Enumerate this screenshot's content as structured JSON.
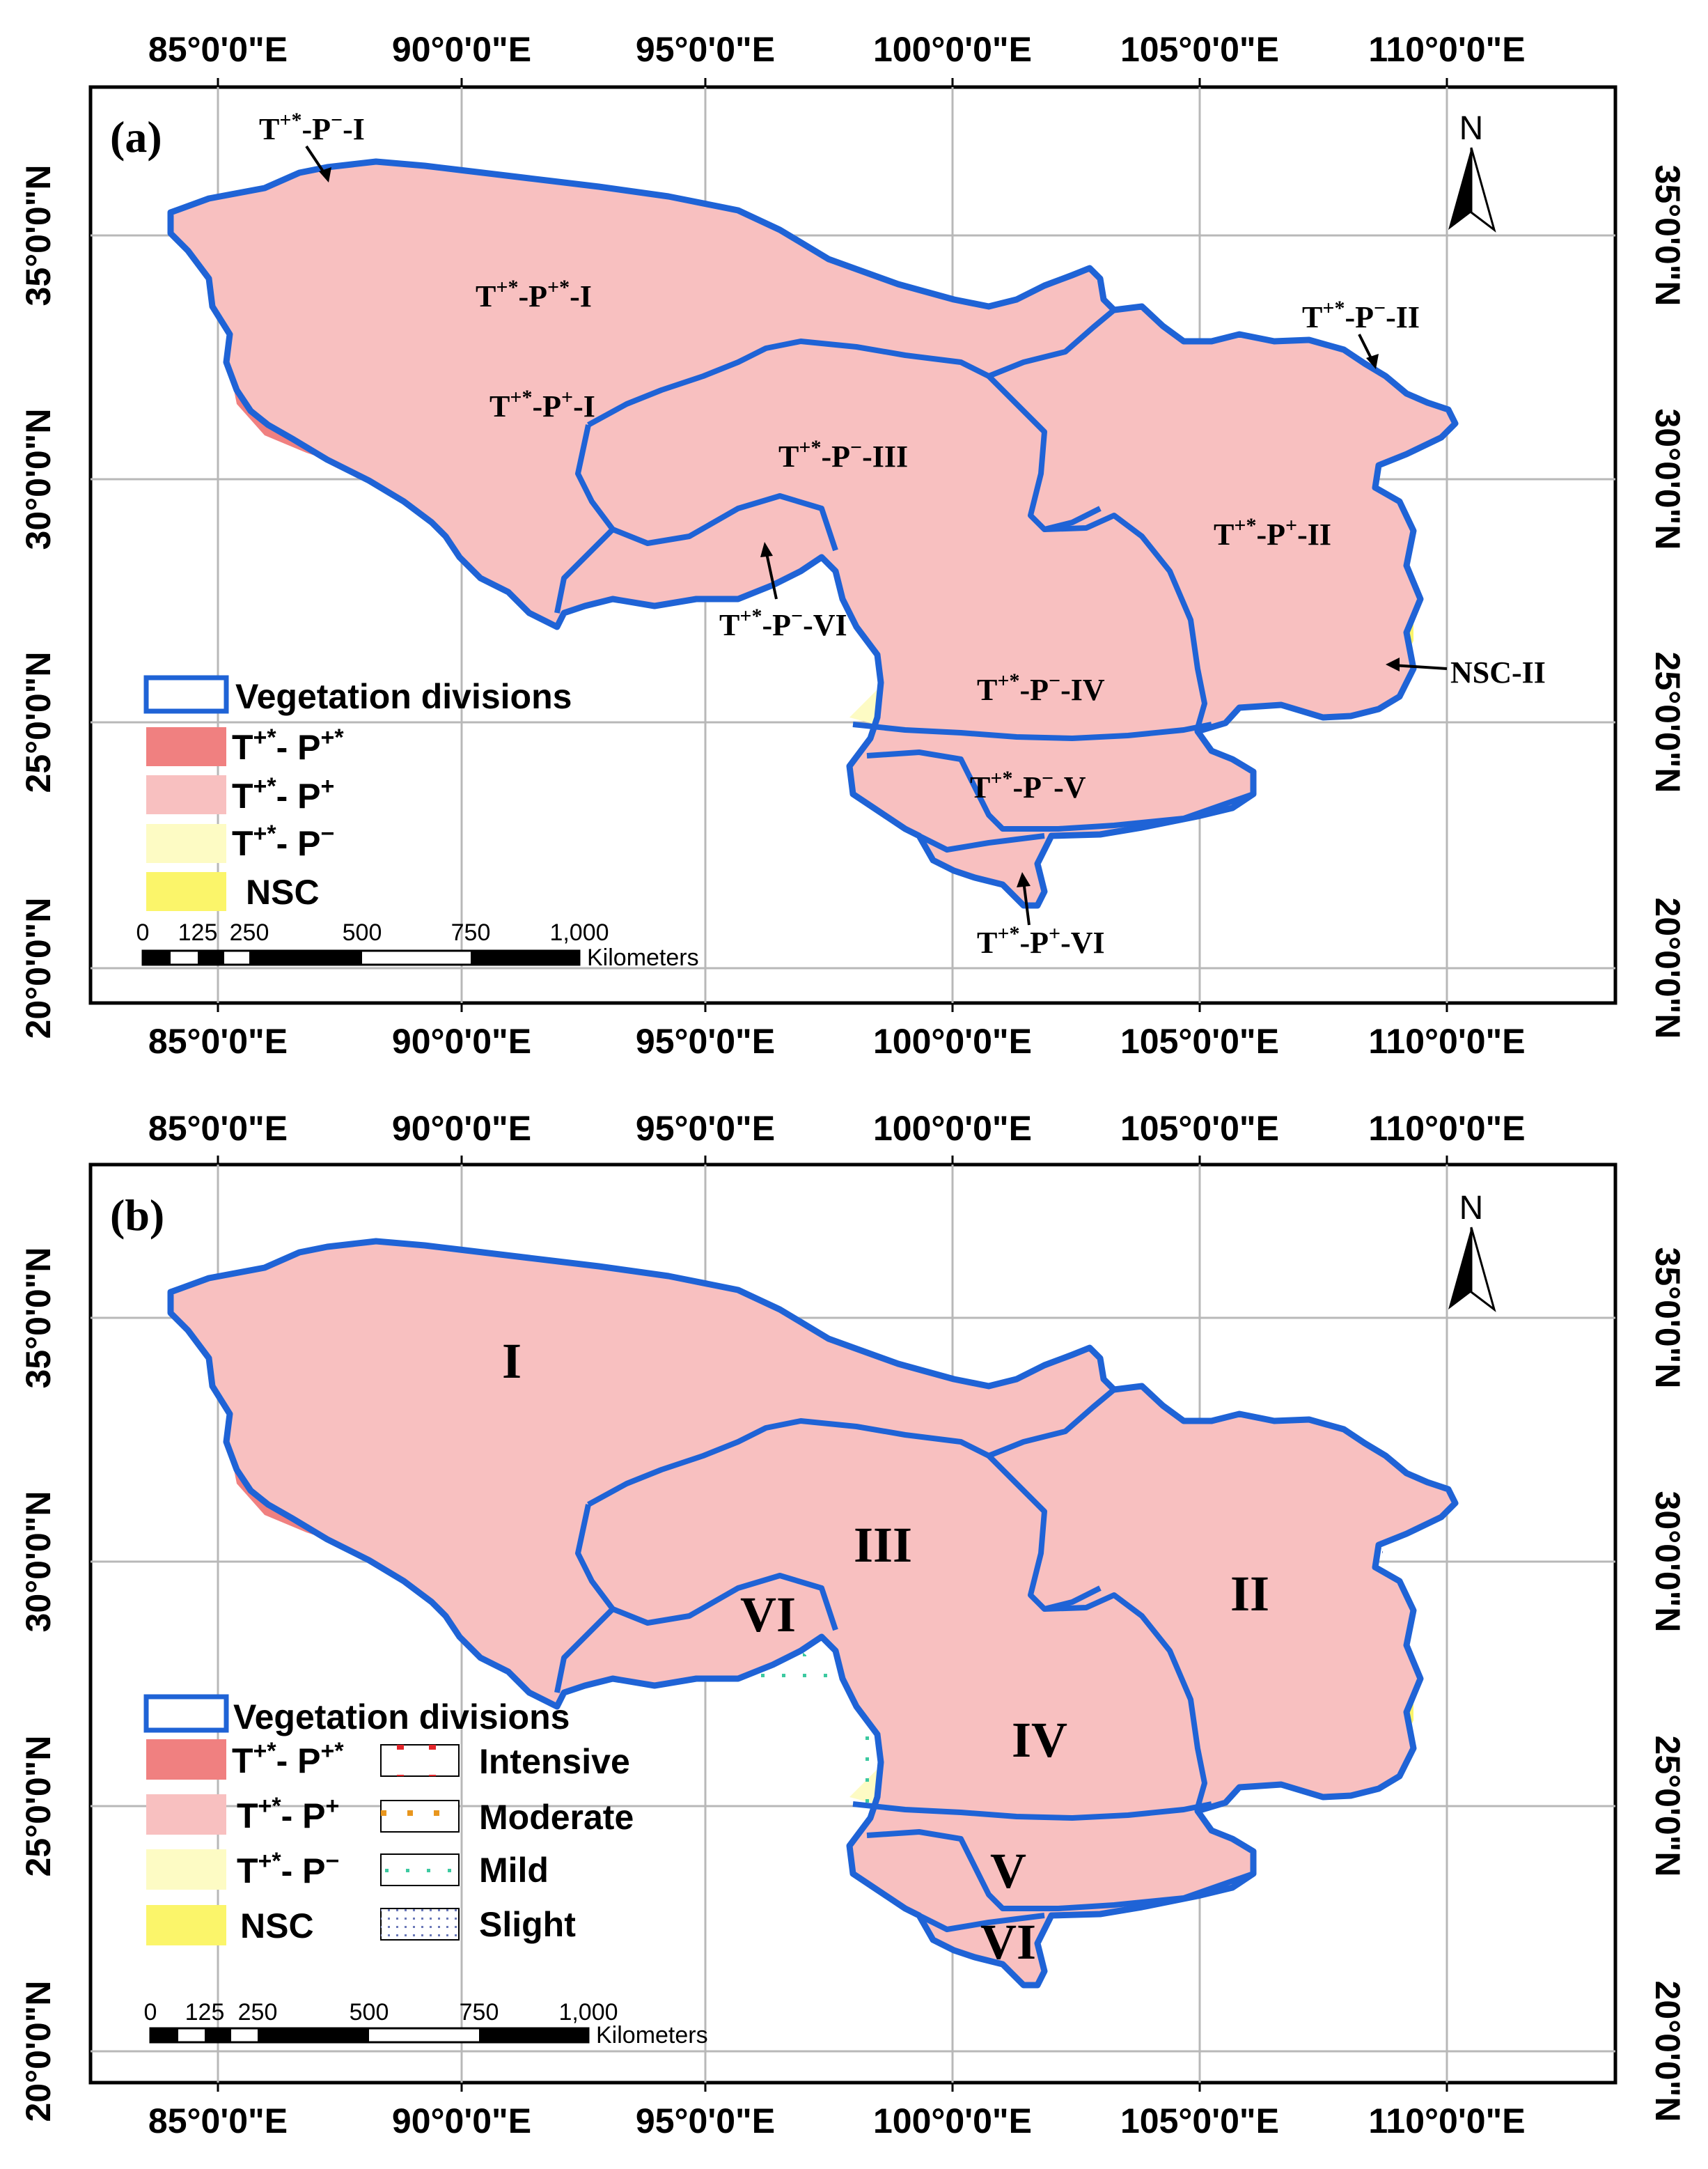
{
  "colors": {
    "t_pp_strong": "#f08080",
    "t_pp": "#f8c0c0",
    "t_pm": "#fdfbc4",
    "nsc": "#fbf56a",
    "boundary": "#1f63d6"
  },
  "axes": {
    "top_lon": [
      "85°0'0\"E",
      "90°0'0\"E",
      "95°0'0\"E",
      "100°0'0\"E",
      "105°0'0\"E",
      "110°0'0\"E"
    ],
    "mid_lon": [
      "85°0'0\"E",
      "90°0'0\"E",
      "95°0'0\"E",
      "100°0'0\"E",
      "105°0'0\"E",
      "110°0'0\"E"
    ],
    "mid_lon_b": [
      "85°0'0\"E",
      "90°0'0\"E",
      "95°0'0\"E",
      "100°0'0\"E",
      "105°0'0\"E",
      "110°0'0\"E"
    ],
    "bottom_lon": [
      "85°0'0\"E",
      "90°0'0\"E",
      "95°0'0\"E",
      "100°0'0\"E",
      "105°0'0\"E",
      "110°0'0\"E"
    ],
    "lat_a": [
      "35°0'0\"N",
      "30°0'0\"N",
      "25°0'0\"N",
      "20°0'0\"N"
    ],
    "lat_a_right": [
      "35°0'0\"N",
      "30°0'0\"N",
      "25°0'0\"N",
      "20°0'0\"N"
    ],
    "lat_b": [
      "35°0'0\"N",
      "30°0'0\"N",
      "25°0'0\"N",
      "20°0'0\"N"
    ],
    "lat_b_right": [
      "35°0'0\"N",
      "30°0'0\"N",
      "25°0'0\"N",
      "20°0'0\"N"
    ]
  },
  "panel_a": {
    "label": "(a)",
    "north": "N",
    "regions": [
      {
        "base": "T",
        "sup1": "+*",
        "mid": "-P",
        "sup2": "−",
        "tail": "-I"
      },
      {
        "base": "T",
        "sup1": "+*",
        "mid": "-P",
        "sup2": "+*",
        "tail": "-I"
      },
      {
        "base": "T",
        "sup1": "+*",
        "mid": "-P",
        "sup2": "+",
        "tail": "-I"
      },
      {
        "base": "T",
        "sup1": "+*",
        "mid": "-P",
        "sup2": "−",
        "tail": "-III"
      },
      {
        "base": "T",
        "sup1": "+*",
        "mid": "-P",
        "sup2": "−",
        "tail": "-II"
      },
      {
        "base": "T",
        "sup1": "+*",
        "mid": "-P",
        "sup2": "+",
        "tail": "-II"
      },
      {
        "base": "T",
        "sup1": "+*",
        "mid": "-P",
        "sup2": "−",
        "tail": "-VI"
      },
      {
        "base": "T",
        "sup1": "+*",
        "mid": "-P",
        "sup2": "−",
        "tail": "-IV"
      },
      {
        "base": "T",
        "sup1": "+*",
        "mid": "-P",
        "sup2": "−",
        "tail": "-V"
      },
      {
        "base": "T",
        "sup1": "+*",
        "mid": "-P",
        "sup2": "+",
        "tail": "-VI"
      }
    ],
    "nsc_label": "NSC-II",
    "legend": {
      "divisions": "Vegetation divisions",
      "items": [
        {
          "base": "T",
          "sup1": "+*",
          "mid": "- P",
          "sup2": "+*"
        },
        {
          "base": "T",
          "sup1": "+*",
          "mid": "- P",
          "sup2": "+"
        },
        {
          "base": "T",
          "sup1": "+*",
          "mid": "- P",
          "sup2": "−"
        }
      ],
      "nsc": "NSC"
    },
    "scale": {
      "ticks": [
        "0",
        "125",
        "250",
        "500",
        "750",
        "1,000"
      ],
      "unit": "Kilometers"
    }
  },
  "panel_b": {
    "label": "(b)",
    "north": "N",
    "regions": [
      "I",
      "II",
      "III",
      "IV",
      "V",
      "VI",
      "VI"
    ],
    "legend": {
      "divisions": "Vegetation divisions",
      "items": [
        {
          "base": "T",
          "sup1": "+*",
          "mid": "- P",
          "sup2": "+*"
        },
        {
          "base": "T",
          "sup1": "+*",
          "mid": "- P",
          "sup2": "+"
        },
        {
          "base": "T",
          "sup1": "+*",
          "mid": "- P",
          "sup2": "−"
        }
      ],
      "nsc": "NSC",
      "intensity": [
        "Intensive",
        "Moderate",
        "Mild",
        "Slight"
      ]
    },
    "scale": {
      "ticks": [
        "0",
        "125",
        "250",
        "500",
        "750",
        "1,000"
      ],
      "unit": "Kilometers"
    }
  }
}
